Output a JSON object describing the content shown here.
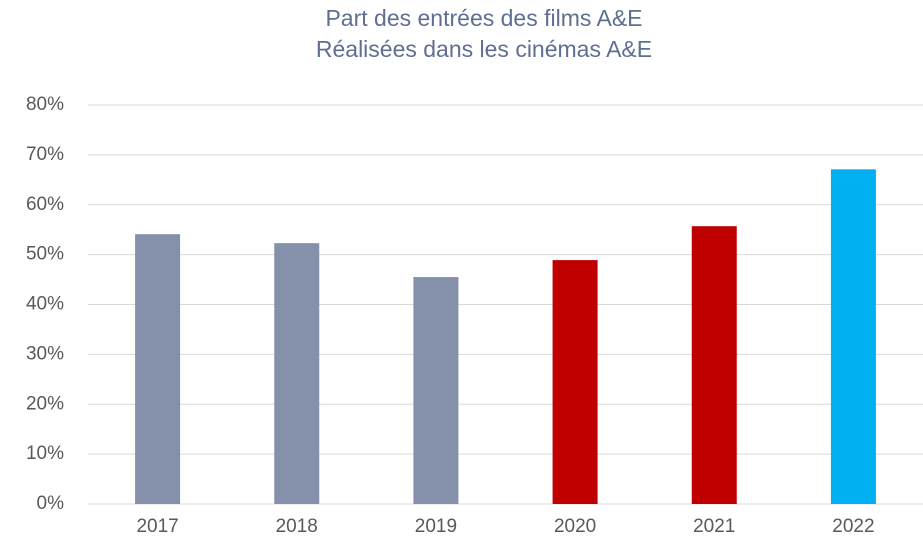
{
  "chart_data": {
    "type": "bar",
    "title": "Part des entrées des films A&E",
    "subtitle": "Réalisées dans les cinémas A&E",
    "categories": [
      "2017",
      "2018",
      "2019",
      "2020",
      "2021",
      "2022"
    ],
    "values": [
      54.1,
      52.3,
      45.5,
      48.9,
      55.7,
      67.1
    ],
    "colors": [
      "#8591ab",
      "#8591ab",
      "#8591ab",
      "#c00000",
      "#c00000",
      "#00b0f0"
    ],
    "ylim": [
      0,
      80
    ],
    "yticks": [
      {
        "value": 0,
        "label": "0%"
      },
      {
        "value": 10,
        "label": "10%"
      },
      {
        "value": 20,
        "label": "20%"
      },
      {
        "value": 30,
        "label": "30%"
      },
      {
        "value": 40,
        "label": "40%"
      },
      {
        "value": 50,
        "label": "50%"
      },
      {
        "value": 60,
        "label": "60%"
      },
      {
        "value": 70,
        "label": "70%"
      },
      {
        "value": 80,
        "label": "80%"
      }
    ],
    "grid": true
  }
}
